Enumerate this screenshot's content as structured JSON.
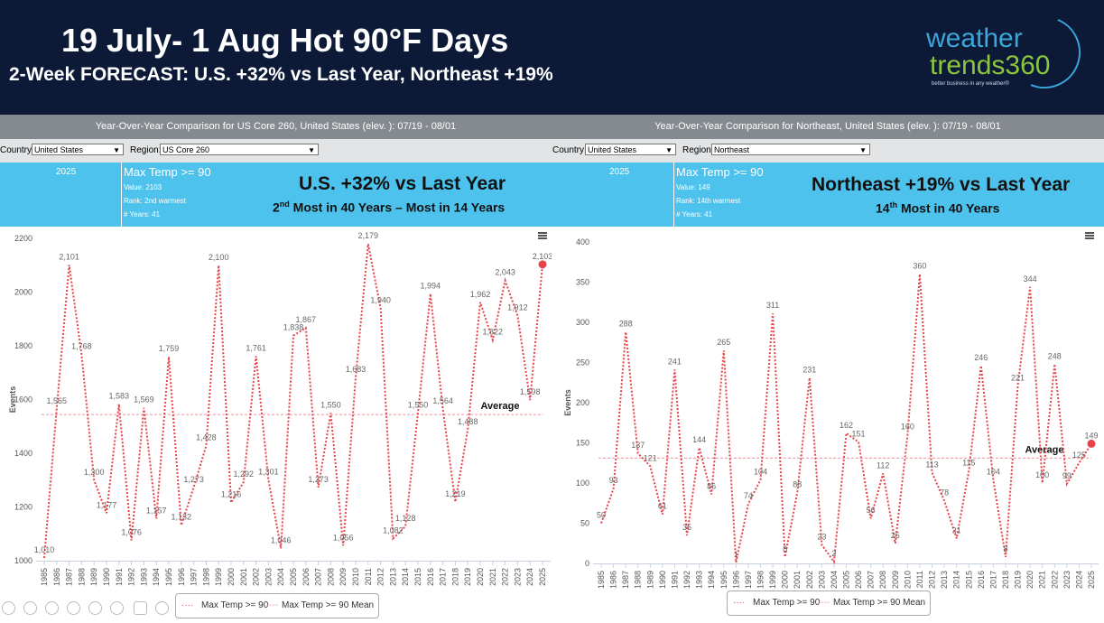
{
  "header": {
    "title": "19 July- 1 Aug Hot 90°F Days",
    "subtitle": "2-Week FORECAST:  U.S. +32% vs Last Year, Northeast +19%",
    "logo_line1": "weather",
    "logo_line2": "trends360",
    "logo_tagline": "better business in any weather®"
  },
  "colors": {
    "header_bg": "#0c1a38",
    "banner": "#4dc2ec",
    "series": "#e8434b",
    "mean": "#f2a8a8",
    "logo_green": "#8cc63f",
    "logo_blue": "#3aa7d8"
  },
  "panels": [
    {
      "comparison_title": "Year-Over-Year Comparison for US Core 260, United States (elev. ): 07/19 - 08/01",
      "country_label": "Country:",
      "country_value": "United States",
      "region_label": "Region:",
      "region_value": "US Core 260",
      "year": "2025",
      "metric": "Max Temp >= 90",
      "value_line": "Value: 2103",
      "rank_line": "Rank: 2nd warmest",
      "years_line": "# Years: 41",
      "headline": "U.S. +32% vs Last Year",
      "subline_num": "2",
      "subline_sup": "nd",
      "subline_rest": " Most in 40 Years –  Most in 14 Years",
      "average_label": "Average",
      "legend_series": "Max Temp >= 90",
      "legend_mean": "Max Temp >= 90 Mean"
    },
    {
      "comparison_title": "Year-Over-Year Comparison for Northeast, United States (elev. ): 07/19 - 08/01",
      "country_label": "Country:",
      "country_value": "United States",
      "region_label": "Region:",
      "region_value": "Northeast",
      "year": "2025",
      "metric": "Max Temp >= 90",
      "value_line": "Value: 149",
      "rank_line": "Rank: 14th warmest",
      "years_line": "# Years: 41",
      "headline": "Northeast +19% vs Last Year",
      "subline_num": "14",
      "subline_sup": "th",
      "subline_rest": " Most in 40 Years",
      "average_label": "Average",
      "legend_series": "Max Temp >= 90",
      "legend_mean": "Max Temp >= 90 Mean"
    }
  ],
  "chart_data": [
    {
      "type": "line",
      "title": "",
      "ylabel": "Events",
      "ylim": [
        1000,
        2200
      ],
      "yticks": [
        1000,
        1200,
        1400,
        1600,
        1800,
        2000,
        2200
      ],
      "ytick_labels": [
        "1000",
        "1200",
        "1400",
        "1600",
        "1800",
        "2000",
        "2200"
      ],
      "x": [
        "1985",
        "1986",
        "1987",
        "1988",
        "1989",
        "1990",
        "1991",
        "1992",
        "1993",
        "1994",
        "1995",
        "1996",
        "1997",
        "1998",
        "1999",
        "2000",
        "2001",
        "2002",
        "2003",
        "2004",
        "2005",
        "2006",
        "2007",
        "2008",
        "2009",
        "2010",
        "2011",
        "2012",
        "2013",
        "2014",
        "2015",
        "2016",
        "2017",
        "2018",
        "2019",
        "2020",
        "2021",
        "2022",
        "2023",
        "2024",
        "2025"
      ],
      "series": [
        {
          "name": "Max Temp >= 90",
          "values": [
            1010,
            1565,
            2101,
            1768,
            1300,
            1177,
            1583,
            1076,
            1569,
            1157,
            1759,
            1132,
            1273,
            1428,
            2100,
            1216,
            1292,
            1761,
            1301,
            1046,
            1838,
            1867,
            1273,
            1550,
            1056,
            1683,
            2179,
            1940,
            1082,
            1128,
            1550,
            1994,
            1564,
            1219,
            1488,
            1962,
            1822,
            2043,
            1912,
            1598,
            2103
          ],
          "labels": [
            "1,010",
            "1,565",
            "2,101",
            "1,768",
            "1,300",
            "1,177",
            "1,583",
            "1,076",
            "1,569",
            "1,157",
            "1,759",
            "1,132",
            "1,273",
            "1,428",
            "2,100",
            "1,216",
            "1,292",
            "1,761",
            "1,301",
            "1,046",
            "1,838",
            "1,867",
            "1,273",
            "1,550",
            "1,056",
            "1,683",
            "2,179",
            "1,940",
            "1,082",
            "1,128",
            "1,550",
            "1,994",
            "1,564",
            "1,219",
            "1,488",
            "1,962",
            "1,822",
            "2,043",
            "1,912",
            "1,598",
            "2,103"
          ]
        }
      ],
      "mean": 1544,
      "grid": false,
      "legend": "bottom-center"
    },
    {
      "type": "line",
      "title": "",
      "ylabel": "Events",
      "ylim": [
        0,
        400
      ],
      "yticks": [
        0,
        50,
        100,
        150,
        200,
        250,
        300,
        350,
        400
      ],
      "ytick_labels": [
        "0",
        "50",
        "100",
        "150",
        "200",
        "250",
        "300",
        "350",
        "400"
      ],
      "x": [
        "1985",
        "1986",
        "1987",
        "1988",
        "1989",
        "1990",
        "1991",
        "1992",
        "1993",
        "1994",
        "1995",
        "1996",
        "1997",
        "1998",
        "1999",
        "2000",
        "2001",
        "2002",
        "2003",
        "2004",
        "2005",
        "2006",
        "2007",
        "2008",
        "2009",
        "2010",
        "2011",
        "2012",
        "2013",
        "2014",
        "2015",
        "2016",
        "2017",
        "2018",
        "2019",
        "2020",
        "2021",
        "2022",
        "2023",
        "2024",
        "2025"
      ],
      "series": [
        {
          "name": "Max Temp >= 90",
          "values": [
            50,
            93,
            288,
            137,
            121,
            61,
            241,
            35,
            144,
            86,
            265,
            1,
            74,
            104,
            311,
            8,
            88,
            231,
            23,
            2,
            162,
            151,
            56,
            112,
            25,
            160,
            360,
            113,
            78,
            31,
            115,
            246,
            104,
            8,
            221,
            344,
            100,
            248,
            99,
            125,
            149
          ],
          "labels": [
            "50",
            "93",
            "288",
            "137",
            "121",
            "61",
            "241",
            "35",
            "144",
            "86",
            "265",
            "1",
            "74",
            "104",
            "311",
            "8",
            "88",
            "231",
            "23",
            "2",
            "162",
            "151",
            "56",
            "112",
            "25",
            "160",
            "360",
            "113",
            "78",
            "31",
            "115",
            "246",
            "104",
            "8",
            "221",
            "344",
            "100",
            "248",
            "99",
            "125",
            "149"
          ]
        }
      ],
      "mean": 131,
      "grid": false,
      "legend": "bottom-center"
    }
  ]
}
